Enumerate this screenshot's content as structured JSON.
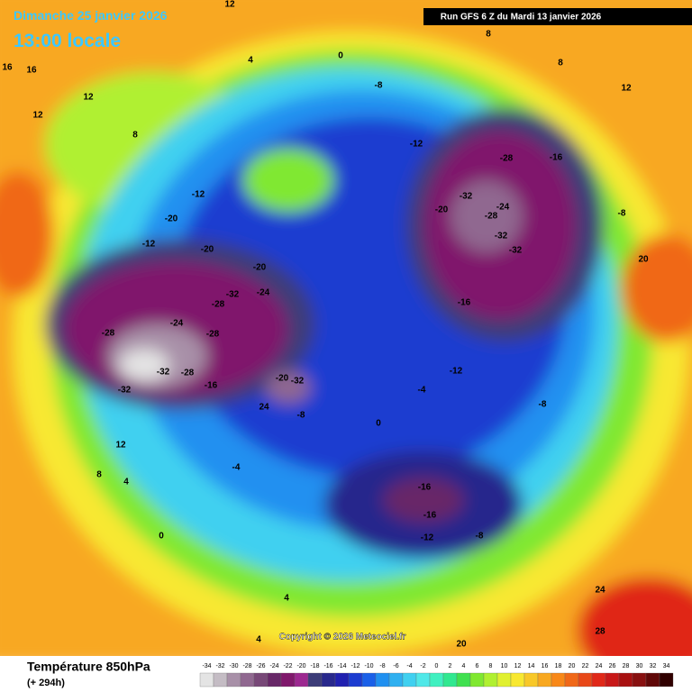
{
  "header": {
    "date": "Dimanche 25 janvier 2026",
    "time": "13:00 locale",
    "run": "Run GFS 6 Z du Mardi 13 janvier 2026"
  },
  "footer": {
    "title": "Température 850hPa",
    "lead": "(+ 294h)",
    "copyright": "Copyright © 2026 Meteociel.fr"
  },
  "scale": {
    "values": [
      -34,
      -32,
      -30,
      -28,
      -26,
      -24,
      -22,
      -20,
      -18,
      -16,
      -14,
      -12,
      -10,
      -8,
      -6,
      -4,
      -2,
      0,
      2,
      4,
      6,
      8,
      10,
      12,
      14,
      16,
      18,
      20,
      22,
      24,
      26,
      28,
      30,
      32,
      34
    ],
    "colors": [
      "#e4e4e4",
      "#c4bcc4",
      "#a890a8",
      "#906890",
      "#784878",
      "#682868",
      "#80186c",
      "#9c2890",
      "#3c3c78",
      "#28288c",
      "#2020b0",
      "#1c3cd0",
      "#1a60e8",
      "#2090f0",
      "#30b0f0",
      "#40d0f0",
      "#50e8e8",
      "#40f0c0",
      "#30e890",
      "#40e050",
      "#80e830",
      "#b0f030",
      "#e0f030",
      "#f8e830",
      "#f8c828",
      "#f8a820",
      "#f88818",
      "#f06818",
      "#e84818",
      "#e02818",
      "#c81818",
      "#a81010",
      "#881010",
      "#600808",
      "#300000"
    ]
  },
  "map": {
    "labels": [
      "12",
      "16",
      "16",
      "12",
      "8",
      "12",
      "4",
      "0",
      "8",
      "8",
      "12",
      "-8",
      "-12",
      "-28",
      "-16",
      "-32",
      "-24",
      "-28",
      "-20",
      "-32",
      "-32",
      "-8",
      "-12",
      "-20",
      "-20",
      "-12",
      "-20",
      "-32",
      "-28",
      "-24",
      "-24",
      "-28",
      "-28",
      "-32",
      "-28",
      "-32",
      "-16",
      "-20",
      "-32",
      "24",
      "-8",
      "-16",
      "-12",
      "-8",
      "-4",
      "0",
      "-16",
      "-16",
      "-12",
      "-8",
      "4",
      "4",
      "20",
      "24",
      "28",
      "20",
      "12",
      "8",
      "4",
      "-4",
      "0"
    ]
  }
}
